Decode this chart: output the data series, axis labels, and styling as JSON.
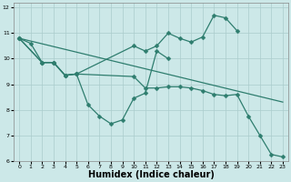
{
  "bg_color": "#cce8e8",
  "grid_color": "#aacccc",
  "line_color": "#2e7d6e",
  "xlabel": "Humidex (Indice chaleur)",
  "xlabel_fontsize": 7,
  "xlim": [
    -0.5,
    23.5
  ],
  "ylim": [
    6,
    12.2
  ],
  "xticks": [
    0,
    1,
    2,
    3,
    4,
    5,
    6,
    7,
    8,
    9,
    10,
    11,
    12,
    13,
    14,
    15,
    16,
    17,
    18,
    19,
    20,
    21,
    22,
    23
  ],
  "yticks": [
    6,
    7,
    8,
    9,
    10,
    11,
    12
  ],
  "segments": [
    {
      "x": [
        0,
        2,
        3,
        4,
        5,
        10,
        11,
        12,
        13,
        14,
        15,
        16,
        17,
        18,
        19
      ],
      "y": [
        10.8,
        9.85,
        9.85,
        9.35,
        9.4,
        10.5,
        10.3,
        10.5,
        11.0,
        10.8,
        10.65,
        10.85,
        11.7,
        11.6,
        11.1
      ]
    },
    {
      "x": [
        0,
        1,
        2,
        3,
        4,
        5,
        6,
        7,
        8,
        9,
        10,
        11,
        12,
        13
      ],
      "y": [
        10.8,
        10.6,
        9.85,
        9.85,
        9.35,
        9.4,
        8.2,
        7.75,
        7.45,
        7.6,
        8.45,
        8.65,
        10.3,
        10.0
      ]
    },
    {
      "x": [
        0,
        23
      ],
      "y": [
        10.8,
        8.3
      ],
      "no_marker": true
    },
    {
      "x": [
        0,
        2,
        3,
        4,
        5,
        10,
        11,
        12,
        13,
        14,
        15,
        16,
        17,
        18,
        19,
        20,
        21,
        22,
        23
      ],
      "y": [
        10.8,
        9.85,
        9.85,
        9.35,
        9.4,
        9.3,
        8.85,
        8.85,
        8.9,
        8.9,
        8.85,
        8.75,
        8.6,
        8.55,
        8.6,
        7.75,
        7.0,
        6.25,
        6.15
      ]
    }
  ]
}
